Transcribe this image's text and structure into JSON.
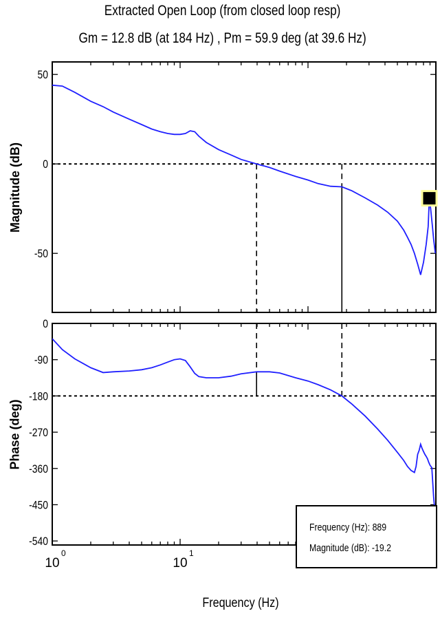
{
  "figure": {
    "title_line1": "Extracted Open Loop (from closed loop resp)",
    "title_line2": "Gm = 12.8 dB (at 184 Hz) ,  Pm = 59.9 deg (at 39.6 Hz)",
    "xlabel": "Frequency (Hz)"
  },
  "datatip": {
    "frequency_text": "Frequency (Hz): 889",
    "magnitude_text": "Magnitude (dB): -19.2"
  },
  "chart_data": [
    {
      "type": "line",
      "panel": "magnitude",
      "ylabel": "Magnitude (dB)",
      "xscale": "log",
      "xlim": [
        1,
        1000
      ],
      "ylim": [
        -83,
        57
      ],
      "yticks": [
        50,
        0,
        -50
      ],
      "ytick_labels": [
        "50",
        "0",
        "-50"
      ],
      "line_color": "#1f1fff",
      "series": [
        {
          "x": [
            1,
            1.2,
            1.5,
            2,
            2.5,
            3,
            4,
            5,
            6,
            7,
            8,
            9,
            10,
            11,
            12,
            13,
            14,
            16,
            20,
            25,
            30,
            39.6,
            50,
            60,
            80,
            100,
            120,
            150,
            184,
            220,
            280,
            350,
            420,
            500,
            560,
            600,
            640,
            680,
            720,
            760,
            800,
            840,
            870,
            889,
            910,
            940,
            960,
            990
          ],
          "y": [
            44,
            43.5,
            40,
            35,
            32,
            29,
            25,
            22,
            19.5,
            18,
            17,
            16.5,
            16.5,
            17,
            18.5,
            18,
            15.5,
            12,
            8,
            5,
            2.5,
            0,
            -2,
            -4,
            -7,
            -9,
            -11,
            -12.5,
            -12.8,
            -15,
            -19,
            -23,
            -27,
            -32,
            -37,
            -41,
            -45,
            -50,
            -56,
            -62,
            -55,
            -45,
            -35,
            -19.2,
            -25,
            -35,
            -42,
            -50
          ]
        }
      ],
      "hlines": [
        {
          "y": 0,
          "style": "dotted"
        }
      ],
      "vlines": [
        {
          "x": 39.6,
          "y_from": 0,
          "y_to": -83,
          "style": "dashed"
        },
        {
          "x": 184,
          "y_from": 0,
          "y_to": -12.8,
          "style": "dashed"
        },
        {
          "x": 184,
          "y_from": -12.8,
          "y_to": -83,
          "style": "solid"
        }
      ],
      "marker": {
        "x": 889,
        "y": -19.2,
        "shape": "square",
        "color": "#000000",
        "halo": "#ffff99"
      }
    },
    {
      "type": "line",
      "panel": "phase",
      "ylabel": "Phase (deg)",
      "xscale": "log",
      "xlim": [
        1,
        1000
      ],
      "ylim": [
        -550,
        0
      ],
      "yticks": [
        0,
        -90,
        -180,
        -270,
        -360,
        -450,
        -540
      ],
      "ytick_labels": [
        "0",
        "-90",
        "-180",
        "-270",
        "-360",
        "-450",
        "-540"
      ],
      "xticks": [
        1,
        10
      ],
      "xtick_base": "10",
      "xtick_exponents": [
        "0",
        "1"
      ],
      "line_color": "#1f1fff",
      "series": [
        {
          "x": [
            1,
            1.2,
            1.5,
            2,
            2.5,
            3,
            4,
            5,
            6,
            7,
            8,
            9,
            10,
            11,
            12,
            13,
            14,
            16,
            20,
            25,
            30,
            39.6,
            50,
            60,
            80,
            100,
            120,
            150,
            184,
            220,
            280,
            350,
            420,
            500,
            560,
            600,
            640,
            680,
            700,
            720,
            740,
            760,
            780,
            800,
            820,
            840,
            860,
            880,
            900,
            930,
            960,
            990
          ],
          "y": [
            -38,
            -65,
            -88,
            -110,
            -122,
            -120,
            -118,
            -115,
            -110,
            -103,
            -96,
            -90,
            -88,
            -92,
            -108,
            -124,
            -132,
            -135,
            -135,
            -131,
            -125,
            -120,
            -120,
            -123,
            -135,
            -143,
            -152,
            -165,
            -180,
            -200,
            -230,
            -262,
            -290,
            -320,
            -340,
            -355,
            -365,
            -370,
            -355,
            -325,
            -315,
            -300,
            -310,
            -318,
            -325,
            -330,
            -336,
            -345,
            -352,
            -358,
            -430,
            -480
          ]
        }
      ],
      "hlines": [
        {
          "y": -180,
          "style": "dotted"
        }
      ],
      "vlines": [
        {
          "x": 39.6,
          "y_from": 0,
          "y_to": -120,
          "style": "dashed"
        },
        {
          "x": 39.6,
          "y_from": -120,
          "y_to": -180,
          "style": "solid"
        },
        {
          "x": 184,
          "y_from": 0,
          "y_to": -180,
          "style": "dashed"
        }
      ]
    }
  ]
}
